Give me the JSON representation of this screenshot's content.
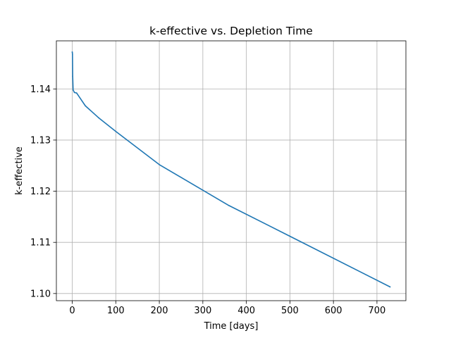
{
  "chart_data": {
    "type": "line",
    "title": "k-effective vs. Depletion Time",
    "xlabel": "Time [days]",
    "ylabel": "k-effective",
    "xlim": [
      -36.5,
      766.5
    ],
    "ylim": [
      1.0986,
      1.1494
    ],
    "xticks": [
      0,
      100,
      200,
      300,
      400,
      500,
      600,
      700
    ],
    "xtick_labels": [
      "0",
      "100",
      "200",
      "300",
      "400",
      "500",
      "600",
      "700"
    ],
    "yticks": [
      1.1,
      1.11,
      1.12,
      1.13,
      1.14
    ],
    "ytick_labels": [
      "1.10",
      "1.11",
      "1.12",
      "1.13",
      "1.14"
    ],
    "grid": true,
    "series": [
      {
        "color": "#1f77b4",
        "x": [
          0,
          0.5,
          1,
          2,
          5,
          10,
          30,
          60,
          100,
          200,
          360,
          500,
          730
        ],
        "y": [
          1.1472,
          1.1468,
          1.1425,
          1.1398,
          1.1393,
          1.1392,
          1.1367,
          1.1344,
          1.1317,
          1.1252,
          1.1172,
          1.1112,
          1.1013
        ]
      }
    ]
  }
}
